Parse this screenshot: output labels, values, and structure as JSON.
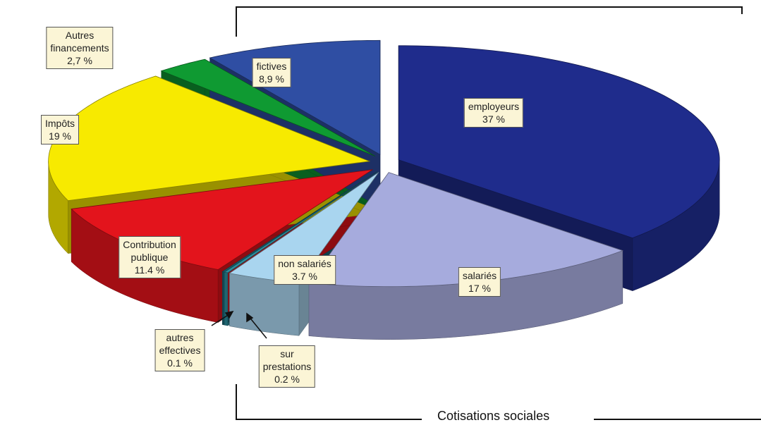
{
  "chart_data": {
    "type": "pie3d",
    "categories": [
      "employeurs",
      "salariés",
      "non salariés",
      "sur prestations",
      "autres effectives",
      "Contribution publique",
      "Impôts",
      "Autres financements",
      "fictives"
    ],
    "values": [
      37,
      17,
      3.7,
      0.2,
      0.1,
      11.4,
      19,
      2.7,
      8.9
    ],
    "value_labels": [
      "37 %",
      "17 %",
      "3.7 %",
      "0.2 %",
      "0.1 %",
      "11.4 %",
      "19 %",
      "2,7 %",
      "8,9 %"
    ],
    "colors": [
      "#1f2c8c",
      "#a6abdd",
      "#a9d5ef",
      "#2b8c9c",
      "#1b6b7b",
      "#e3141c",
      "#f7ea00",
      "#0f9a32",
      "#2f4ea3"
    ],
    "annotation": "Cotisations sociales"
  }
}
